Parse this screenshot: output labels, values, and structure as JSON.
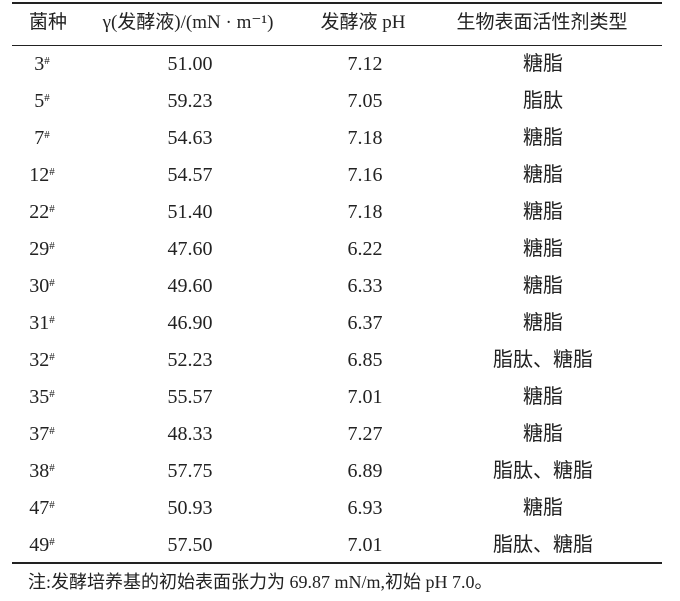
{
  "table": {
    "headers": [
      "菌种",
      "γ(发酵液)/(mN · m⁻¹)",
      "发酵液 pH",
      "生物表面活性剂类型"
    ],
    "rows": [
      {
        "strain": "3",
        "mark": "#",
        "gamma": "51.00",
        "ph": "7.12",
        "type": "糖脂"
      },
      {
        "strain": "5",
        "mark": "#",
        "gamma": "59.23",
        "ph": "7.05",
        "type": "脂肽"
      },
      {
        "strain": "7",
        "mark": "#",
        "gamma": "54.63",
        "ph": "7.18",
        "type": "糖脂"
      },
      {
        "strain": "12",
        "mark": "#",
        "gamma": "54.57",
        "ph": "7.16",
        "type": "糖脂"
      },
      {
        "strain": "22",
        "mark": "#",
        "gamma": "51.40",
        "ph": "7.18",
        "type": "糖脂"
      },
      {
        "strain": "29",
        "mark": "#",
        "gamma": "47.60",
        "ph": "6.22",
        "type": "糖脂"
      },
      {
        "strain": "30",
        "mark": "#",
        "gamma": "49.60",
        "ph": "6.33",
        "type": "糖脂"
      },
      {
        "strain": "31",
        "mark": "#",
        "gamma": "46.90",
        "ph": "6.37",
        "type": "糖脂"
      },
      {
        "strain": "32",
        "mark": "#",
        "gamma": "52.23",
        "ph": "6.85",
        "type": "脂肽、糖脂"
      },
      {
        "strain": "35",
        "mark": "#",
        "gamma": "55.57",
        "ph": "7.01",
        "type": "糖脂"
      },
      {
        "strain": "37",
        "mark": "#",
        "gamma": "48.33",
        "ph": "7.27",
        "type": "糖脂"
      },
      {
        "strain": "38",
        "mark": "#",
        "gamma": "57.75",
        "ph": "6.89",
        "type": "脂肽、糖脂"
      },
      {
        "strain": "47",
        "mark": "#",
        "gamma": "50.93",
        "ph": "6.93",
        "type": "糖脂"
      },
      {
        "strain": "49",
        "mark": "#",
        "gamma": "57.50",
        "ph": "7.01",
        "type": "脂肽、糖脂"
      }
    ],
    "note": "注:发酵培养基的初始表面张力为 69.87 mN/m,初始 pH 7.0。"
  }
}
